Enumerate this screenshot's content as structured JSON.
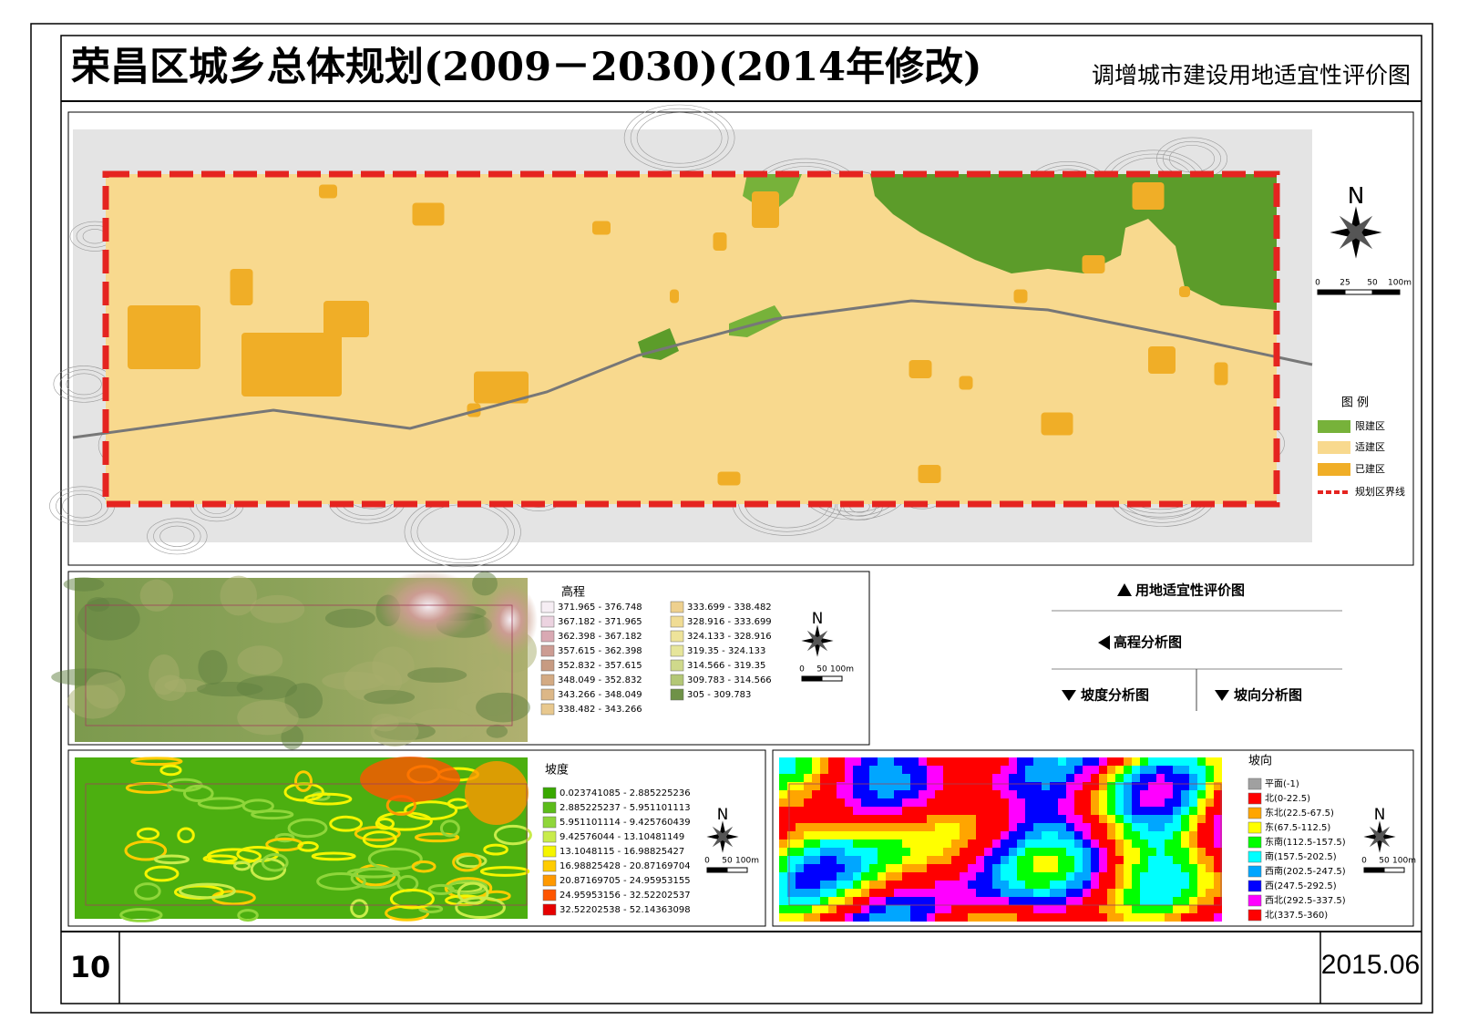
{
  "header": {
    "title": "荣昌区城乡总体规划(2009－2030)(2014年修改)",
    "subtitle": "调增城市建设用地适宜性评价图"
  },
  "main_map": {
    "north": "N",
    "scale": [
      "0",
      "25",
      "50",
      "100m"
    ],
    "legend": {
      "title": "图 例",
      "items": [
        {
          "label": "限建区",
          "color": "#77b23a"
        },
        {
          "label": "适建区",
          "color": "#f8d98e"
        },
        {
          "label": "已建区",
          "color": "#f0ae27"
        },
        {
          "label": "规划区界线",
          "color": "#e52420"
        }
      ]
    }
  },
  "elevation": {
    "title": "高程",
    "north": "N",
    "scale": [
      "0",
      "50",
      "100m"
    ],
    "items": [
      {
        "label": "371.965 - 376.748",
        "color": "#f6eef4"
      },
      {
        "label": "367.182 - 371.965",
        "color": "#ecd3e0"
      },
      {
        "label": "362.398 - 367.182",
        "color": "#d9a9b3"
      },
      {
        "label": "357.615 - 362.398",
        "color": "#cc9c93"
      },
      {
        "label": "352.832 - 357.615",
        "color": "#c79b82"
      },
      {
        "label": "348.049 - 352.832",
        "color": "#d3aa83"
      },
      {
        "label": "343.266 - 348.049",
        "color": "#dcb787"
      },
      {
        "label": "338.482 - 343.266",
        "color": "#e8c88e"
      },
      {
        "label": "333.699 - 338.482",
        "color": "#eed08e"
      },
      {
        "label": "328.916 - 333.699",
        "color": "#f0dc94"
      },
      {
        "label": "324.133 - 328.916",
        "color": "#eee39a"
      },
      {
        "label": "319.35 - 324.133",
        "color": "#e6e59a"
      },
      {
        "label": "314.566 - 319.35",
        "color": "#cfd98b"
      },
      {
        "label": "309.783 - 314.566",
        "color": "#b3c776"
      },
      {
        "label": "305 - 309.783",
        "color": "#6f9247"
      }
    ]
  },
  "slope": {
    "title": "坡度",
    "north": "N",
    "scale": [
      "0",
      "50",
      "100m"
    ],
    "items": [
      {
        "label": "0.023741085 - 2.885225236",
        "color": "#38a800"
      },
      {
        "label": "2.885225237 - 5.951101113",
        "color": "#5cbc1a"
      },
      {
        "label": "5.951101114 - 9.425760439",
        "color": "#8fd63a"
      },
      {
        "label": "9.42576044 - 13.10481149",
        "color": "#c8ec4a"
      },
      {
        "label": "13.1048115 - 16.98825427",
        "color": "#f5f500"
      },
      {
        "label": "16.98825428 - 20.87169704",
        "color": "#ffcc00"
      },
      {
        "label": "20.87169705 - 24.95953155",
        "color": "#ff9900"
      },
      {
        "label": "24.95953156 - 32.52202537",
        "color": "#ff5500"
      },
      {
        "label": "32.52202538 - 52.14363098",
        "color": "#e60000"
      }
    ]
  },
  "aspect": {
    "title": "坡向",
    "north": "N",
    "scale": [
      "0",
      "50",
      "100m"
    ],
    "items": [
      {
        "label": "平面(-1)",
        "color": "#a0a0a0"
      },
      {
        "label": "北(0-22.5)",
        "color": "#ff0000"
      },
      {
        "label": "东北(22.5-67.5)",
        "color": "#ffa500"
      },
      {
        "label": "东(67.5-112.5)",
        "color": "#ffff00"
      },
      {
        "label": "东南(112.5-157.5)",
        "color": "#00ff00"
      },
      {
        "label": "南(157.5-202.5)",
        "color": "#00ffff"
      },
      {
        "label": "西南(202.5-247.5)",
        "color": "#00a6ff"
      },
      {
        "label": "西(247.5-292.5)",
        "color": "#0000ff"
      },
      {
        "label": "西北(292.5-337.5)",
        "color": "#ff00ff"
      },
      {
        "label": "北(337.5-360)",
        "color": "#ff0000"
      }
    ]
  },
  "nav": [
    "用地适宜性评价图",
    "高程分析图",
    "坡度分析图",
    "坡向分析图"
  ],
  "footer": {
    "page": "10",
    "date": "2015.06"
  }
}
